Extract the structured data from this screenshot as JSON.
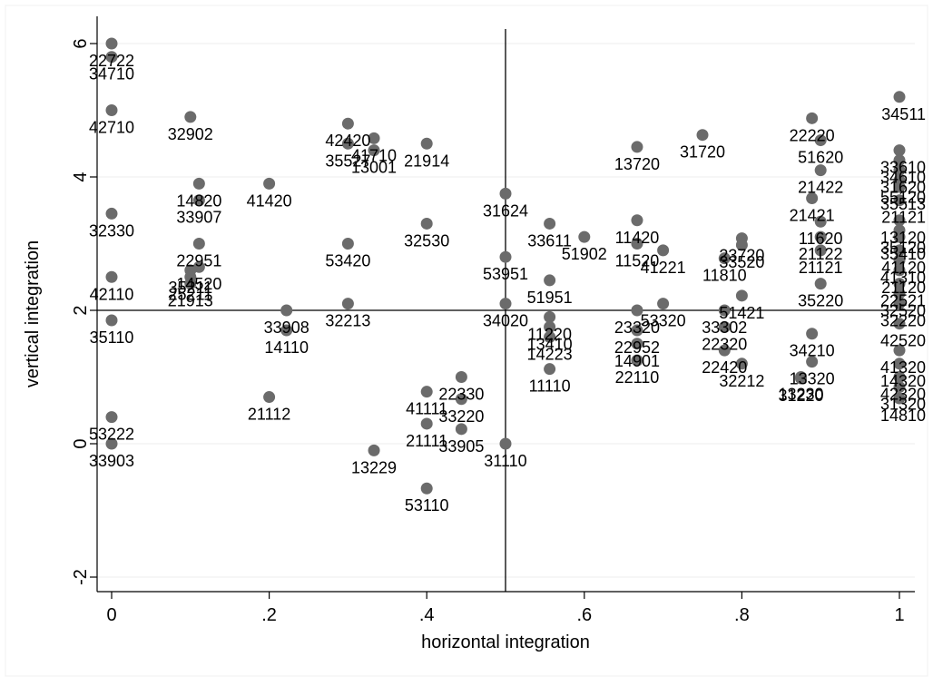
{
  "chart_data": {
    "type": "scatter",
    "title": "",
    "xlabel": "horizontal integration",
    "ylabel": "vertical integration",
    "xlim": [
      0,
      1
    ],
    "ylim": [
      -2,
      6
    ],
    "xticks": [
      {
        "value": 0,
        "label": "0"
      },
      {
        "value": 0.2,
        "label": ".2"
      },
      {
        "value": 0.4,
        "label": ".4"
      },
      {
        "value": 0.6,
        "label": ".6"
      },
      {
        "value": 0.8,
        "label": ".8"
      },
      {
        "value": 1,
        "label": "1"
      }
    ],
    "yticks": [
      {
        "value": -2,
        "label": "-2"
      },
      {
        "value": 0,
        "label": "0"
      },
      {
        "value": 2,
        "label": "2"
      },
      {
        "value": 4,
        "label": "4"
      },
      {
        "value": 6,
        "label": "6"
      }
    ],
    "grid": "horizontal",
    "reference_lines": {
      "x": 0.5,
      "y": 2
    },
    "marker_color": "#6b6b6b",
    "points": [
      {
        "x": 0,
        "y": 6,
        "label": "22722"
      },
      {
        "x": 0,
        "y": 5.8,
        "label": "34710"
      },
      {
        "x": 0,
        "y": 5,
        "label": "42710"
      },
      {
        "x": 0,
        "y": 3.45,
        "label": "32330"
      },
      {
        "x": 0,
        "y": 2.5,
        "label": "42110"
      },
      {
        "x": 0,
        "y": 1.85,
        "label": "35110"
      },
      {
        "x": 0,
        "y": 0.4,
        "label": "53222"
      },
      {
        "x": 0,
        "y": 0,
        "label": "33903"
      },
      {
        "x": 0.1,
        "y": 4.9,
        "label": "32902"
      },
      {
        "x": 0.111,
        "y": 3.9,
        "label": "14820"
      },
      {
        "x": 0.111,
        "y": 3.65,
        "label": "33907"
      },
      {
        "x": 0.111,
        "y": 3,
        "label": "22951"
      },
      {
        "x": 0.111,
        "y": 2.65,
        "label": "14520"
      },
      {
        "x": 0.1,
        "y": 2.6,
        "label": "35211"
      },
      {
        "x": 0.1,
        "y": 2.5,
        "label": "25211"
      },
      {
        "x": 0.1,
        "y": 2.4,
        "label": "21913"
      },
      {
        "x": 0.2,
        "y": 3.9,
        "label": "41420"
      },
      {
        "x": 0.2,
        "y": 0.7,
        "label": "21112"
      },
      {
        "x": 0.222,
        "y": 2,
        "label": "33908"
      },
      {
        "x": 0.222,
        "y": 1.7,
        "label": "14110"
      },
      {
        "x": 0.3,
        "y": 4.8,
        "label": "42420"
      },
      {
        "x": 0.3,
        "y": 4.5,
        "label": "35527"
      },
      {
        "x": 0.333,
        "y": 4.58,
        "label": "41710"
      },
      {
        "x": 0.333,
        "y": 4.4,
        "label": "13001"
      },
      {
        "x": 0.4,
        "y": 4.5,
        "label": "21914"
      },
      {
        "x": 0.3,
        "y": 3,
        "label": "53420"
      },
      {
        "x": 0.3,
        "y": 2.1,
        "label": "32213"
      },
      {
        "x": 0.4,
        "y": 3.3,
        "label": "32530"
      },
      {
        "x": 0.4,
        "y": 0.78,
        "label": "41111"
      },
      {
        "x": 0.444,
        "y": 1,
        "label": "22330"
      },
      {
        "x": 0.444,
        "y": 0.67,
        "label": "33220"
      },
      {
        "x": 0.4,
        "y": 0.3,
        "label": "21111"
      },
      {
        "x": 0.444,
        "y": 0.22,
        "label": "33905"
      },
      {
        "x": 0.333,
        "y": -0.1,
        "label": "13229"
      },
      {
        "x": 0.4,
        "y": -0.67,
        "label": "53110"
      },
      {
        "x": 0.5,
        "y": 3.75,
        "label": "31624"
      },
      {
        "x": 0.5,
        "y": 2.8,
        "label": "53951"
      },
      {
        "x": 0.5,
        "y": 2.1,
        "label": "34020"
      },
      {
        "x": 0.5,
        "y": 0,
        "label": "31110"
      },
      {
        "x": 0.556,
        "y": 3.3,
        "label": "33611"
      },
      {
        "x": 0.6,
        "y": 3.1,
        "label": "51902"
      },
      {
        "x": 0.556,
        "y": 2.45,
        "label": "51951"
      },
      {
        "x": 0.556,
        "y": 1.9,
        "label": "11220"
      },
      {
        "x": 0.556,
        "y": 1.75,
        "label": "13410"
      },
      {
        "x": 0.556,
        "y": 1.6,
        "label": "14223"
      },
      {
        "x": 0.556,
        "y": 1.12,
        "label": "11110"
      },
      {
        "x": 0.667,
        "y": 4.45,
        "label": "13720"
      },
      {
        "x": 0.667,
        "y": 3.35,
        "label": "11420"
      },
      {
        "x": 0.667,
        "y": 3,
        "label": "11520"
      },
      {
        "x": 0.7,
        "y": 2.9,
        "label": "41221"
      },
      {
        "x": 0.667,
        "y": 2,
        "label": "23320"
      },
      {
        "x": 0.7,
        "y": 2.1,
        "label": "53320"
      },
      {
        "x": 0.667,
        "y": 1.7,
        "label": "22952"
      },
      {
        "x": 0.667,
        "y": 1.5,
        "label": "14901"
      },
      {
        "x": 0.667,
        "y": 1.25,
        "label": "22110"
      },
      {
        "x": 0.75,
        "y": 4.63,
        "label": "31720"
      },
      {
        "x": 0.8,
        "y": 3.08,
        "label": "23720"
      },
      {
        "x": 0.8,
        "y": 2.98,
        "label": "33520"
      },
      {
        "x": 0.778,
        "y": 2.78,
        "label": "11810"
      },
      {
        "x": 0.8,
        "y": 2.22,
        "label": "51421"
      },
      {
        "x": 0.778,
        "y": 2,
        "label": "33302"
      },
      {
        "x": 0.778,
        "y": 1.75,
        "label": "22320"
      },
      {
        "x": 0.778,
        "y": 1.4,
        "label": "22420"
      },
      {
        "x": 0.8,
        "y": 1.2,
        "label": "32212"
      },
      {
        "x": 0.889,
        "y": 4.88,
        "label": "22220"
      },
      {
        "x": 0.9,
        "y": 4.55,
        "label": "51620"
      },
      {
        "x": 0.9,
        "y": 4.1,
        "label": "21422"
      },
      {
        "x": 0.889,
        "y": 3.68,
        "label": "21421"
      },
      {
        "x": 0.9,
        "y": 3.33,
        "label": "11620"
      },
      {
        "x": 0.9,
        "y": 3.1,
        "label": "21122"
      },
      {
        "x": 0.9,
        "y": 2.9,
        "label": "21121"
      },
      {
        "x": 0.9,
        "y": 2.4,
        "label": "35220"
      },
      {
        "x": 0.889,
        "y": 1.65,
        "label": "34210"
      },
      {
        "x": 0.889,
        "y": 1.23,
        "label": "13320"
      },
      {
        "x": 0.875,
        "y": 1,
        "label": "13230"
      },
      {
        "x": 0.875,
        "y": 0.98,
        "label": "31220"
      },
      {
        "x": 1,
        "y": 5.2,
        "label": "34511"
      },
      {
        "x": 1,
        "y": 4.4,
        "label": "33610"
      },
      {
        "x": 1,
        "y": 4.25,
        "label": "34610"
      },
      {
        "x": 1,
        "y": 4.1,
        "label": "31620"
      },
      {
        "x": 1,
        "y": 3.95,
        "label": "55120"
      },
      {
        "x": 1,
        "y": 3.85,
        "label": "35513"
      },
      {
        "x": 1,
        "y": 3.65,
        "label": "21121"
      },
      {
        "x": 1,
        "y": 3.35,
        "label": "13120"
      },
      {
        "x": 1,
        "y": 3.2,
        "label": "35120"
      },
      {
        "x": 1,
        "y": 3.1,
        "label": "35410"
      },
      {
        "x": 1,
        "y": 2.9,
        "label": "41120"
      },
      {
        "x": 1,
        "y": 2.75,
        "label": "41310"
      },
      {
        "x": 1,
        "y": 2.6,
        "label": "21120"
      },
      {
        "x": 1,
        "y": 2.4,
        "label": "22521"
      },
      {
        "x": 1,
        "y": 2.25,
        "label": "32520"
      },
      {
        "x": 1,
        "y": 2.1,
        "label": "32220"
      },
      {
        "x": 1,
        "y": 1.8,
        "label": "42520"
      },
      {
        "x": 1,
        "y": 1.4,
        "label": "41320"
      },
      {
        "x": 1,
        "y": 1.2,
        "label": "14320"
      },
      {
        "x": 1,
        "y": 1,
        "label": "42320"
      },
      {
        "x": 1,
        "y": 0.85,
        "label": "31320"
      },
      {
        "x": 1,
        "y": 0.68,
        "label": "14810"
      }
    ]
  }
}
